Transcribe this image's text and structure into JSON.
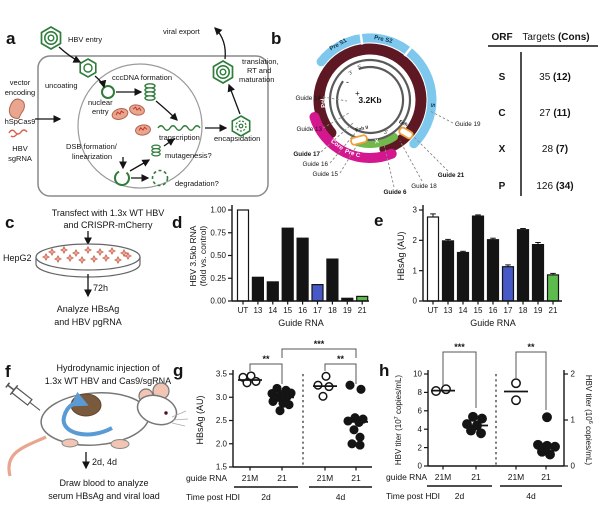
{
  "panels": {
    "a": {
      "label": "a",
      "hbv_entry": "HBV entry",
      "viral_export": "viral export",
      "uncoating": "uncoating",
      "cccdna_formation": "cccDNA formation",
      "nuclear": "nuclear",
      "entry": "entry",
      "transcription": "transcription",
      "dsb1": "DSB formation/",
      "dsb2": "linearization",
      "mutagenesis": "mutagenesis?",
      "degradation": "degradation?",
      "encapsidation": "encapsidation",
      "trans1": "translation,",
      "trans2": "RT and",
      "trans3": "maturation",
      "vector1": "vector",
      "vector2": "encoding",
      "cas9": "hSpCas9",
      "sgrna1": "HBV",
      "sgrna2": "sgRNA"
    },
    "b": {
      "label": "b",
      "center_size": "3.2Kb",
      "pre_s1": "Pre S1",
      "pre_s2": "Pre S2",
      "s": "S",
      "pol": "Pol",
      "core": "Core",
      "pre_c": "Pre C",
      "x_orf": "X",
      "enh2": "Enh II",
      "enh1": "Enh I",
      "plus": "+",
      "minus": "-",
      "five_prime": "5'",
      "three_prime": "3'",
      "three_prime2": "3'",
      "colors": {
        "pre_s": "#7EC8EE",
        "pol": "#5E1823",
        "core": "#D4178F",
        "x": "#72B84C",
        "enh": "#F0A03C"
      },
      "guides": [
        {
          "label": "Guide 14",
          "color": "#222222"
        },
        {
          "label": "Guide 13",
          "color": "#222222"
        },
        {
          "label": "Guide 17",
          "color": "#3A50C9"
        },
        {
          "label": "Guide 16",
          "color": "#222222"
        },
        {
          "label": "Guide 15",
          "color": "#222222"
        },
        {
          "label": "Guide 6",
          "color": "#9C27B0"
        },
        {
          "label": "Guide 18",
          "color": "#222222"
        },
        {
          "label": "Guide 21",
          "color": "#43A047"
        },
        {
          "label": "Guide 19",
          "color": "#222222"
        }
      ],
      "table": {
        "col_orf": "ORF",
        "col_targets": "Targets ",
        "col_cons": "(Cons)",
        "rows": [
          {
            "orf": "S",
            "targets": "35 ",
            "cons": "(12)"
          },
          {
            "orf": "C",
            "targets": "27 ",
            "cons": "(11)"
          },
          {
            "orf": "X",
            "targets": "28 ",
            "cons": "(7)"
          },
          {
            "orf": "P",
            "targets": "126 ",
            "cons": "(34)"
          }
        ]
      }
    },
    "c": {
      "label": "c",
      "line1": "Transfect with 1.3x WT HBV",
      "line2": "and CRISPR-mCherry",
      "cell_line": "HepG2",
      "duration": "72h",
      "out1": "Analyze HBsAg",
      "out2": "and HBV pgRNA"
    },
    "d": {
      "label": "d"
    },
    "e": {
      "label": "e"
    },
    "f": {
      "label": "f",
      "line1": "Hydrodynamic injection of",
      "line2": "1.3x WT HBV and Cas9/sgRNA",
      "duration": "2d, 4d",
      "out1": "Draw blood to analyze",
      "out2": "serum HBsAg and viral load"
    },
    "g": {
      "label": "g"
    },
    "h": {
      "label": "h"
    }
  },
  "chart_data": [
    {
      "id": "d",
      "type": "bar",
      "categories": [
        "UT",
        "13",
        "14",
        "15",
        "16",
        "17",
        "18",
        "19",
        "21"
      ],
      "values": [
        1.0,
        0.26,
        0.21,
        0.8,
        0.69,
        0.18,
        0.46,
        0.03,
        0.05
      ],
      "bar_colors": [
        "#ffffff",
        "#141414",
        "#141414",
        "#141414",
        "#141414",
        "#4659C6",
        "#141414",
        "#141414",
        "#5DBB4E"
      ],
      "ylabel_lines": [
        "HBV 3.5kb RNA",
        "(fold vs. control)"
      ],
      "xlabel": "Guide RNA",
      "ylim": [
        0,
        1
      ],
      "ytick_values": [
        0,
        0.25,
        0.5,
        0.75,
        1
      ],
      "ytick_labels": [
        "0.00",
        "0.25",
        "0.50",
        "0.75",
        "1.00"
      ]
    },
    {
      "id": "e",
      "type": "bar",
      "categories": [
        "UT",
        "13",
        "14",
        "15",
        "16",
        "17",
        "18",
        "19",
        "21"
      ],
      "values": [
        2.77,
        1.98,
        1.6,
        2.8,
        2.02,
        1.13,
        2.35,
        1.86,
        0.86
      ],
      "errors": [
        0.1,
        0.05,
        0.04,
        0.04,
        0.05,
        0.06,
        0.04,
        0.07,
        0.05
      ],
      "bar_colors": [
        "#ffffff",
        "#141414",
        "#141414",
        "#141414",
        "#141414",
        "#4659C6",
        "#141414",
        "#141414",
        "#5DBB4E"
      ],
      "ylabel": "HBsAg (AU)",
      "xlabel": "Guide RNA",
      "ylim": [
        0,
        3
      ],
      "ytick_values": [
        0,
        1,
        2,
        3
      ],
      "ytick_labels": [
        "0",
        "1",
        "2",
        "3"
      ]
    },
    {
      "id": "g",
      "type": "scatter",
      "ylabel": "HBsAg (AU)",
      "ylim": [
        1.5,
        3.5
      ],
      "ytick_values": [
        1.5,
        2.0,
        2.5,
        3.0,
        3.5
      ],
      "ytick_labels": [
        "1.5",
        "2.0",
        "2.5",
        "3.0",
        "3.5"
      ],
      "row1_label": "guide RNA",
      "row2_label": "Time post HDI",
      "days": [
        {
          "label": "2d",
          "groups": [
            0,
            1
          ]
        },
        {
          "label": "4d",
          "groups": [
            2,
            3
          ]
        }
      ],
      "groups": [
        {
          "x_label": "21M",
          "marker": "open",
          "mean": 3.37,
          "points": [
            [
              -7,
              3.43
            ],
            [
              1,
              3.46
            ],
            [
              -3,
              3.31
            ],
            [
              6,
              3.34
            ]
          ]
        },
        {
          "x_label": "21",
          "marker": "filled",
          "mean": 3.0,
          "points": [
            [
              -5,
              3.19
            ],
            [
              4,
              3.15
            ],
            [
              -10,
              3.08
            ],
            [
              0,
              3.06
            ],
            [
              9,
              3.09
            ],
            [
              -4,
              3.0
            ],
            [
              5,
              3.01
            ],
            [
              -9,
              2.91
            ],
            [
              1,
              2.87
            ],
            [
              7,
              2.84
            ],
            [
              -2,
              2.71
            ]
          ]
        },
        {
          "x_label": "21M",
          "marker": "open",
          "mean": 3.24,
          "points": [
            [
              1,
              3.45
            ],
            [
              -7,
              3.26
            ],
            [
              4,
              3.23
            ],
            [
              -2,
              3.02
            ]
          ]
        },
        {
          "x_label": "21",
          "marker": "filled",
          "mean": 2.47,
          "points": [
            [
              -6,
              3.26
            ],
            [
              5,
              3.17
            ],
            [
              -1,
              2.56
            ],
            [
              7,
              2.53
            ],
            [
              -8,
              2.49
            ],
            [
              3,
              2.46
            ],
            [
              -2,
              2.3
            ],
            [
              4,
              2.14
            ],
            [
              -4,
              2.0
            ],
            [
              4,
              1.97
            ]
          ]
        }
      ],
      "significance": [
        {
          "stars": "**",
          "between": [
            0,
            1
          ]
        },
        {
          "stars": "**",
          "between": [
            2,
            3
          ]
        },
        {
          "stars": "***",
          "between": [
            1,
            3
          ]
        }
      ]
    },
    {
      "id": "h",
      "type": "scatter",
      "ylabel_left": {
        "pre": "HBV titer (10",
        "exp": "7",
        "post": " copies/mL)"
      },
      "ylabel_right": {
        "pre": "HBV titer (10",
        "exp": "6",
        "post": " copies/mL)"
      },
      "ylim": [
        0,
        10
      ],
      "ytick_values": [
        0,
        2,
        4,
        6,
        8,
        10
      ],
      "ytick_labels": [
        "0",
        "2",
        "4",
        "6",
        "8",
        "10"
      ],
      "ylim_right": [
        0,
        2
      ],
      "ytick_values_right": [
        0,
        1,
        2
      ],
      "ytick_labels_right": [
        "0",
        "1",
        "2"
      ],
      "row1_label": "guide RNA",
      "row2_label": "Time post HDI",
      "days": [
        {
          "label": "2d",
          "groups": [
            0,
            1
          ]
        },
        {
          "label": "4d",
          "groups": [
            2,
            3
          ]
        }
      ],
      "groups": [
        {
          "x_label": "21M",
          "marker": "open",
          "mean": 8.2,
          "points": [
            [
              -7,
              8.15
            ],
            [
              3,
              8.35
            ]
          ]
        },
        {
          "x_label": "21",
          "marker": "filled",
          "mean": 4.4,
          "points": [
            [
              -3,
              5.35
            ],
            [
              6,
              5.15
            ],
            [
              -9,
              4.55
            ],
            [
              1,
              4.4
            ],
            [
              -5,
              3.85
            ],
            [
              5,
              3.55
            ]
          ]
        },
        {
          "x_label": "21M",
          "marker": "open",
          "mean": 8.1,
          "points": [
            [
              0,
              9.0
            ],
            [
              0,
              7.15
            ]
          ]
        },
        {
          "x_label": "21",
          "marker": "filled",
          "mean": 2.2,
          "points": [
            [
              1,
              5.3
            ],
            [
              -8,
              2.3
            ],
            [
              1,
              2.2
            ],
            [
              9,
              2.1
            ],
            [
              -4,
              1.55
            ],
            [
              4,
              1.25
            ]
          ]
        }
      ],
      "significance": [
        {
          "stars": "***",
          "between": [
            0,
            1
          ]
        },
        {
          "stars": "**",
          "between": [
            2,
            3
          ]
        }
      ]
    }
  ]
}
